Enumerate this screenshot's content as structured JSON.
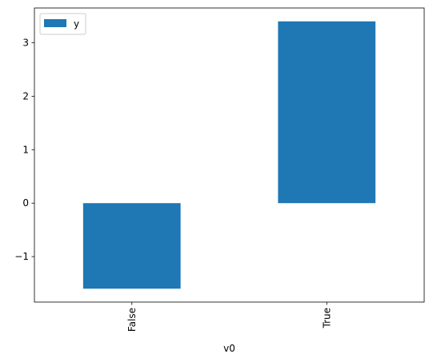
{
  "chart_data": {
    "type": "bar",
    "categories": [
      "False",
      "True"
    ],
    "series": [
      {
        "name": "y",
        "values": [
          -1.6,
          3.4
        ]
      }
    ],
    "title": "",
    "xlabel": "v0",
    "ylabel": "",
    "ylim": [
      -1.85,
      3.65
    ],
    "yticks": [
      -1,
      0,
      1,
      2,
      3
    ],
    "ytick_labels": [
      "−1",
      "0",
      "1",
      "2",
      "3"
    ],
    "grid": false,
    "legend": "top-left",
    "xtick_rotation": "vertical",
    "colors": {
      "bar": "#1f77b4",
      "axes": "#000000",
      "background": "#ffffff"
    }
  }
}
